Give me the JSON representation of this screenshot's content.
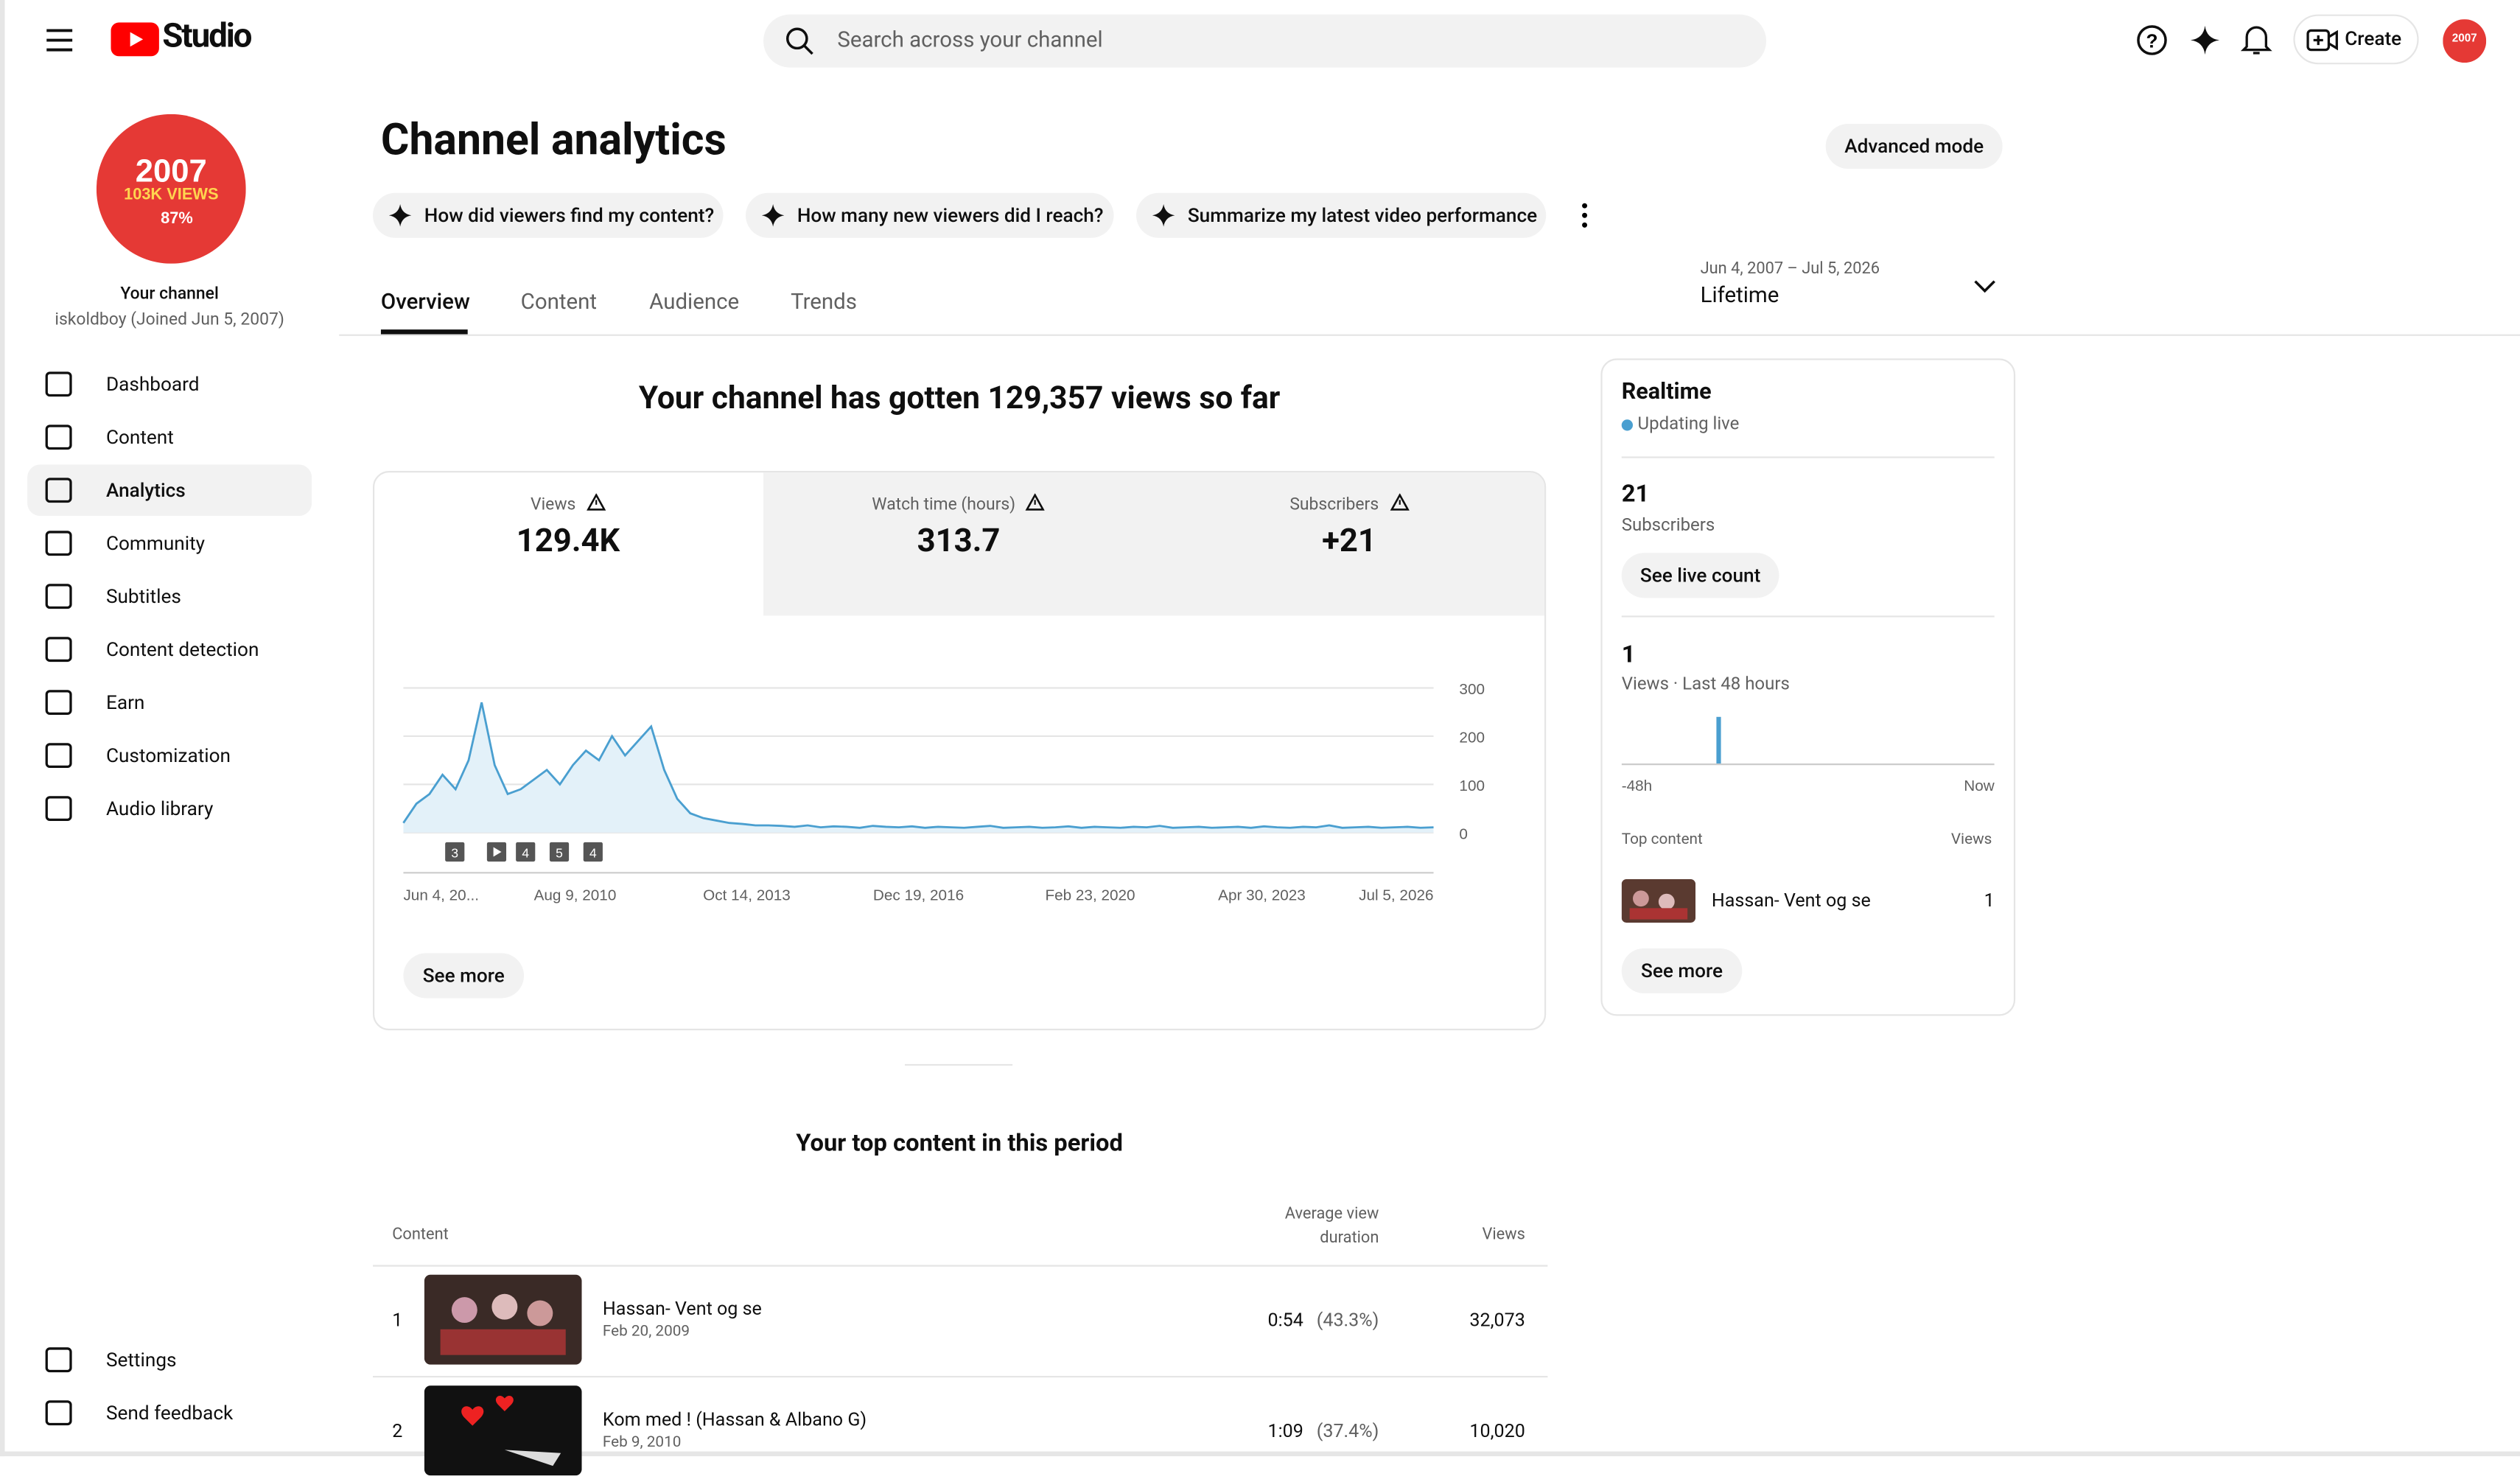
{
  "header": {
    "logo": "Studio",
    "search_placeholder": "Search across your channel",
    "create": "Create"
  },
  "sidebar": {
    "avatar": {
      "year": "2007",
      "views": "103K VIEWS",
      "percent": "87%"
    },
    "channel_label": "Your channel",
    "channel_handle": "iskoldboy (Joined Jun 5, 2007)",
    "nav": [
      "Dashboard",
      "Content",
      "Analytics",
      "Community",
      "Subtitles",
      "Content detection",
      "Earn",
      "Customization",
      "Audio library"
    ],
    "footer_nav": [
      "Settings",
      "Send feedback"
    ]
  },
  "page": {
    "title": "Channel analytics",
    "advanced_mode": "Advanced mode",
    "prompts": [
      "How did viewers find my content?",
      "How many new viewers did I reach?",
      "Summarize my latest video performance"
    ],
    "tabs": [
      "Overview",
      "Content",
      "Audience",
      "Trends"
    ],
    "date_range": "Jun 4, 2007 – Jul 5, 2026",
    "period": "Lifetime"
  },
  "overview": {
    "headline": "Your channel has gotten 129,357 views so far",
    "metrics": [
      {
        "label": "Views",
        "value": "129.4K"
      },
      {
        "label": "Watch time (hours)",
        "value": "313.7"
      },
      {
        "label": "Subscribers",
        "value": "+21"
      }
    ],
    "chart": {
      "type": "line",
      "color": "#4a9fd0",
      "ylim": [
        0,
        300
      ],
      "yticks": [
        0,
        100,
        200,
        300
      ],
      "x_labels": [
        "Jun 4, 20...",
        "Aug 9, 2010",
        "Oct 14, 2013",
        "Dec 19, 2016",
        "Feb 23, 2020",
        "Apr 30, 2023",
        "Jul 5, 2026"
      ],
      "annotations": [
        "3",
        "4",
        "5",
        "4"
      ],
      "values": [
        20,
        60,
        80,
        120,
        90,
        150,
        270,
        140,
        80,
        90,
        110,
        130,
        100,
        140,
        170,
        150,
        200,
        160,
        190,
        220,
        130,
        70,
        40,
        30,
        25,
        20,
        18,
        15,
        15,
        14,
        12,
        15,
        11,
        13,
        12,
        10,
        14,
        12,
        11,
        13,
        10,
        12,
        11,
        10,
        12,
        14,
        10,
        11,
        12,
        10,
        11,
        13,
        10,
        12,
        11,
        10,
        12,
        11,
        14,
        10,
        11,
        12,
        10,
        11,
        12,
        10,
        13,
        11,
        10,
        12,
        11,
        15,
        10,
        11,
        12,
        10,
        11,
        12,
        10,
        11
      ]
    },
    "see_more": "See more"
  },
  "realtime": {
    "title": "Realtime",
    "status": "Updating live",
    "subscribers": "21",
    "subscribers_label": "Subscribers",
    "see_live_count": "See live count",
    "views": "1",
    "views_label": "Views · Last 48 hours",
    "chart": {
      "type": "bar",
      "color": "#4a9fd0",
      "ylim": [
        0,
        1
      ],
      "values": [
        0,
        0,
        0,
        0,
        0,
        0,
        0,
        0,
        0,
        0,
        0,
        0,
        1,
        0,
        0,
        0,
        0,
        0,
        0,
        0,
        0,
        0,
        0,
        0,
        0,
        0,
        0,
        0,
        0,
        0,
        0,
        0,
        0,
        0,
        0,
        0,
        0,
        0,
        0,
        0,
        0,
        0,
        0,
        0,
        0,
        0,
        0,
        0
      ],
      "x_labels": [
        "-48h",
        "Now"
      ]
    },
    "top_content_label": "Top content",
    "views_header": "Views",
    "top_item": {
      "title": "Hassan- Vent og se",
      "views": "1"
    },
    "see_more": "See more"
  },
  "top_content": {
    "title": "Your top content in this period",
    "headers": [
      "Content",
      "Average view duration",
      "Views"
    ],
    "rows": [
      {
        "rank": 1,
        "title": "Hassan- Vent og se",
        "date": "Feb 20, 2009",
        "duration": "0:54",
        "percent": "(43.3%)",
        "views": "32,073"
      },
      {
        "rank": 2,
        "title": "Kom med ! (Hassan & Albano G)",
        "date": "Feb 9, 2010",
        "duration": "1:09",
        "percent": "(37.4%)",
        "views": "10,020"
      }
    ]
  }
}
